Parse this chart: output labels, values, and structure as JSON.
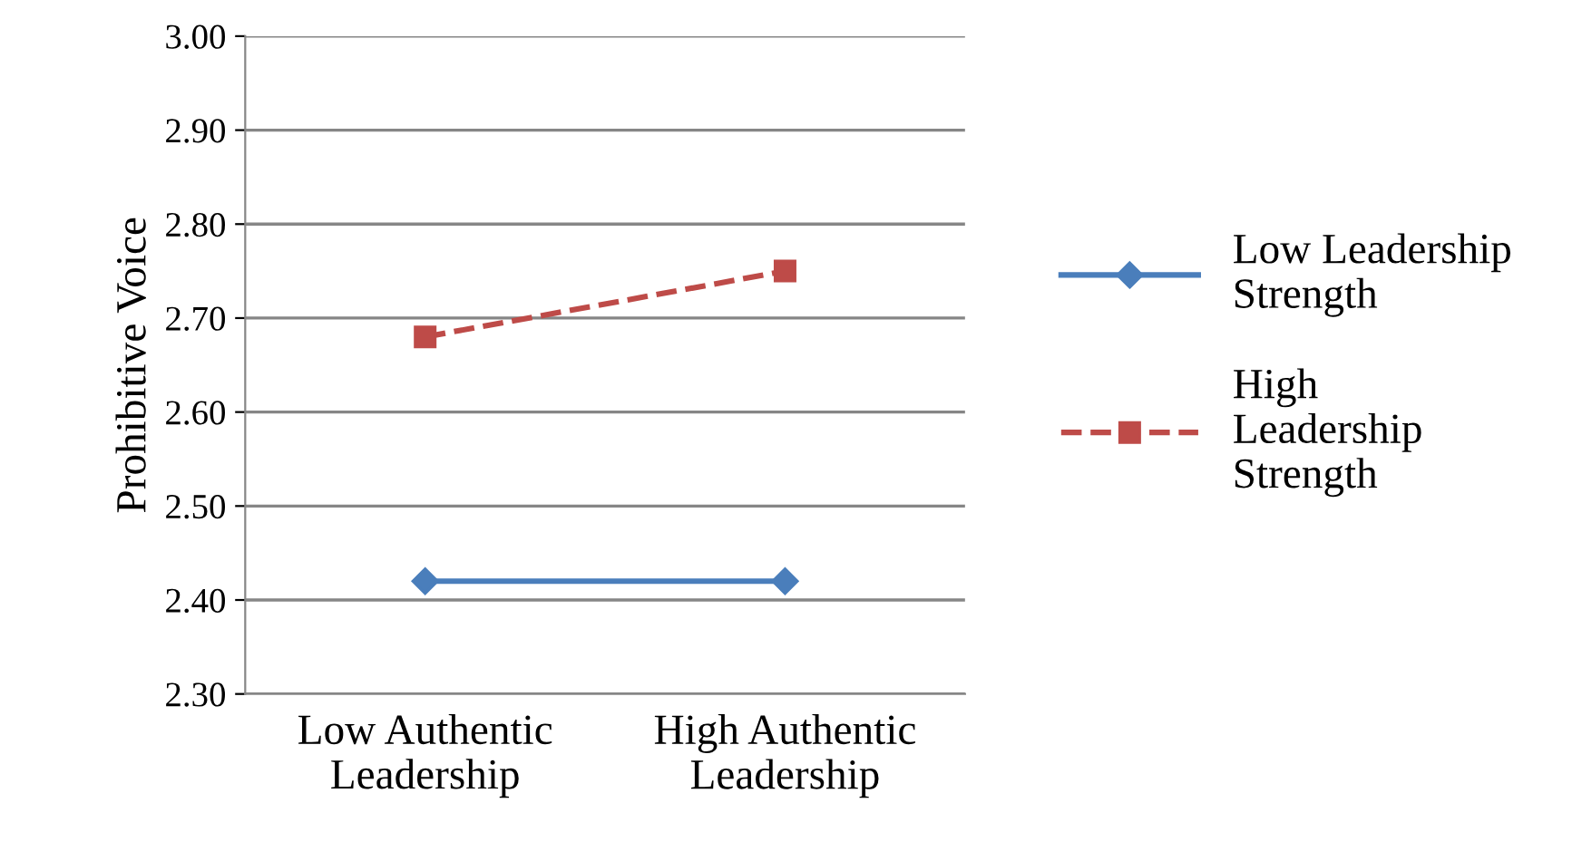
{
  "chart_data": {
    "type": "line",
    "ylabel": "Prohibitive Voice",
    "categories": [
      "Low Authentic\nLeadership",
      "High Authentic\nLeadership"
    ],
    "series": [
      {
        "name": "Low Leadership\nStrength",
        "color": "#4a7ebb",
        "values": [
          2.42,
          2.42
        ],
        "marker": "diamond",
        "line_style": "solid"
      },
      {
        "name": "High\nLeadership\nStrength",
        "color": "#be4b48",
        "values": [
          2.68,
          2.75
        ],
        "marker": "square",
        "line_style": "dashed"
      }
    ],
    "ylim": [
      2.3,
      3.0
    ],
    "yticks": [
      {
        "value": 2.3,
        "label": "2.30"
      },
      {
        "value": 2.4,
        "label": "2.40"
      },
      {
        "value": 2.5,
        "label": "2.50"
      },
      {
        "value": 2.6,
        "label": "2.60"
      },
      {
        "value": 2.7,
        "label": "2.70"
      },
      {
        "value": 2.8,
        "label": "2.80"
      },
      {
        "value": 2.9,
        "label": "2.90"
      },
      {
        "value": 3.0,
        "label": "3.00"
      }
    ],
    "grid": "y",
    "legend": "right"
  }
}
